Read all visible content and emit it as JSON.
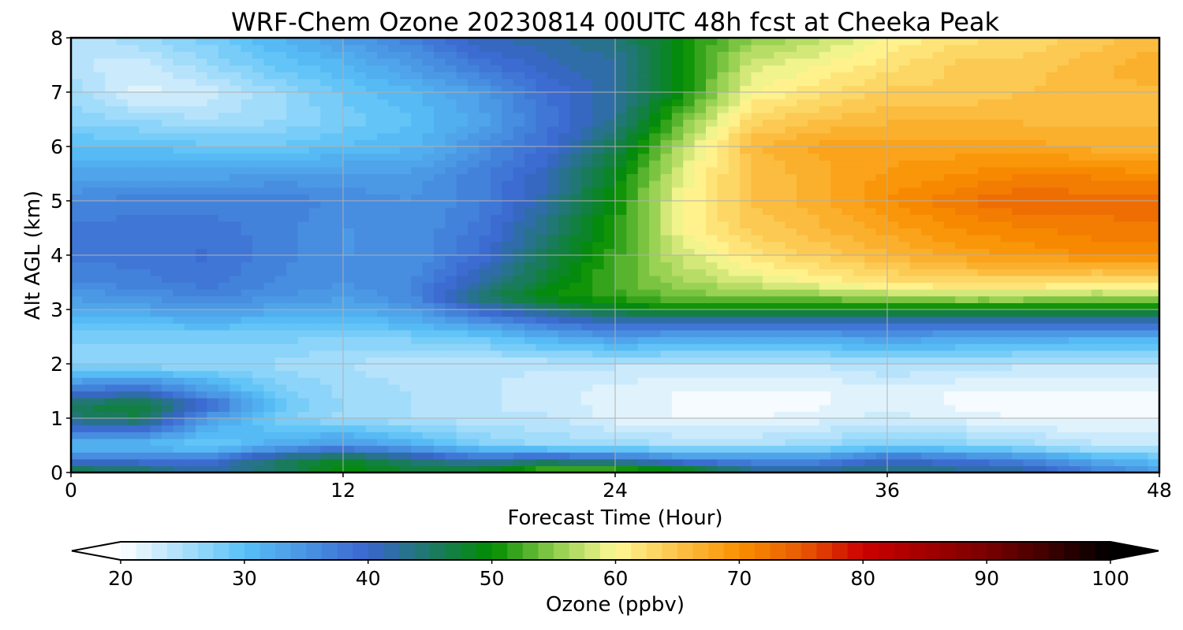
{
  "chart_data": {
    "type": "heatmap",
    "title": "WRF-Chem Ozone  20230814 00UTC 48h fcst at Cheeka Peak",
    "xlabel": "Forecast Time (Hour)",
    "ylabel": "Alt AGL (km)",
    "xlim": [
      0,
      48
    ],
    "ylim": [
      0,
      8
    ],
    "x_ticks": [
      0,
      12,
      24,
      36,
      48
    ],
    "y_ticks": [
      0,
      1,
      2,
      3,
      4,
      5,
      6,
      7,
      8
    ],
    "grid": true,
    "x": [
      0,
      3,
      6,
      9,
      12,
      15,
      18,
      21,
      24,
      27,
      30,
      33,
      36,
      39,
      42,
      45,
      48
    ],
    "y": [
      0,
      0.25,
      0.5,
      1,
      1.25,
      1.5,
      2,
      2.5,
      2.75,
      3,
      3.25,
      3.5,
      4,
      4.5,
      5,
      5.5,
      6,
      6.5,
      7,
      7.5,
      8
    ],
    "z": [
      [
        48,
        46,
        42,
        45,
        50,
        48,
        50,
        55,
        55,
        52,
        45,
        44,
        45,
        44,
        43,
        38,
        34
      ],
      [
        38,
        38,
        38,
        45,
        48,
        44,
        40,
        42,
        40,
        36,
        35,
        35,
        40,
        38,
        36,
        32,
        30
      ],
      [
        30,
        30,
        28,
        32,
        35,
        32,
        28,
        26,
        26,
        25,
        25,
        26,
        28,
        27,
        26,
        24,
        24
      ],
      [
        44,
        46,
        34,
        28,
        26,
        25,
        24,
        24,
        22,
        21,
        21,
        22,
        23,
        22,
        21,
        21,
        21
      ],
      [
        46,
        48,
        40,
        30,
        26,
        25,
        24,
        23,
        22,
        21,
        21,
        21,
        22,
        21,
        21,
        21,
        21
      ],
      [
        38,
        40,
        34,
        28,
        26,
        25,
        24,
        23,
        22,
        21,
        21,
        21,
        22,
        21,
        21,
        21,
        21
      ],
      [
        26,
        26,
        26,
        26,
        25,
        24,
        24,
        24,
        24,
        24,
        24,
        24,
        25,
        25,
        24,
        24,
        24
      ],
      [
        28,
        28,
        28,
        28,
        27,
        28,
        29,
        32,
        34,
        33,
        33,
        33,
        34,
        33,
        33,
        32,
        32
      ],
      [
        30,
        30,
        31,
        30,
        30,
        31,
        34,
        38,
        40,
        40,
        40,
        40,
        40,
        40,
        40,
        40,
        40
      ],
      [
        32,
        33,
        34,
        33,
        32,
        34,
        40,
        44,
        48,
        50,
        49,
        49,
        49,
        49,
        49,
        49,
        49
      ],
      [
        34,
        35,
        37,
        35,
        34,
        36,
        45,
        50,
        52,
        54,
        55,
        55,
        56,
        57,
        57,
        56,
        56
      ],
      [
        36,
        37,
        38,
        36,
        35,
        36,
        42,
        48,
        53,
        56,
        58,
        60,
        62,
        63,
        63,
        62,
        62
      ],
      [
        38,
        38,
        39,
        37,
        35,
        35,
        39,
        46,
        52,
        58,
        62,
        64,
        66,
        68,
        69,
        70,
        70
      ],
      [
        38,
        38,
        38,
        37,
        35,
        35,
        38,
        44,
        51,
        60,
        64,
        66,
        68,
        70,
        71,
        72,
        72
      ],
      [
        36,
        37,
        37,
        37,
        36,
        35,
        37,
        42,
        50,
        60,
        65,
        67,
        70,
        72,
        74,
        73,
        74
      ],
      [
        33,
        33,
        33,
        34,
        34,
        34,
        37,
        41,
        49,
        59,
        65,
        67,
        69,
        70,
        71,
        71,
        70
      ],
      [
        30,
        30,
        29,
        29,
        30,
        31,
        35,
        39,
        46,
        57,
        66,
        68,
        68,
        68,
        68,
        67,
        67
      ],
      [
        27,
        26,
        25,
        26,
        28,
        30,
        33,
        38,
        43,
        54,
        63,
        65,
        66,
        66,
        66,
        66,
        66
      ],
      [
        26,
        22,
        23,
        26,
        29,
        31,
        34,
        39,
        42,
        50,
        60,
        62,
        64,
        64,
        65,
        66,
        66
      ],
      [
        24,
        23,
        26,
        29,
        31,
        34,
        38,
        41,
        42,
        50,
        58,
        60,
        62,
        64,
        64,
        66,
        67
      ],
      [
        24,
        26,
        28,
        31,
        34,
        37,
        41,
        42,
        44,
        50,
        55,
        57,
        60,
        62,
        63,
        64,
        66
      ]
    ],
    "colorbar": {
      "label": "Ozone  (ppbv)",
      "min": 20,
      "max": 100,
      "ticks": [
        20,
        30,
        40,
        50,
        60,
        70,
        80,
        90,
        100
      ],
      "extend": "both",
      "colors": [
        [
          20,
          "#ffffff"
        ],
        [
          30,
          "#58c0f6"
        ],
        [
          40,
          "#3a66cf"
        ],
        [
          50,
          "#008c00"
        ],
        [
          55,
          "#8ccc4a"
        ],
        [
          60,
          "#fff996"
        ],
        [
          64,
          "#fccd57"
        ],
        [
          70,
          "#f99000"
        ],
        [
          75,
          "#e85a05"
        ],
        [
          80,
          "#cc0000"
        ],
        [
          90,
          "#7a0000"
        ],
        [
          100,
          "#000000"
        ]
      ]
    }
  }
}
